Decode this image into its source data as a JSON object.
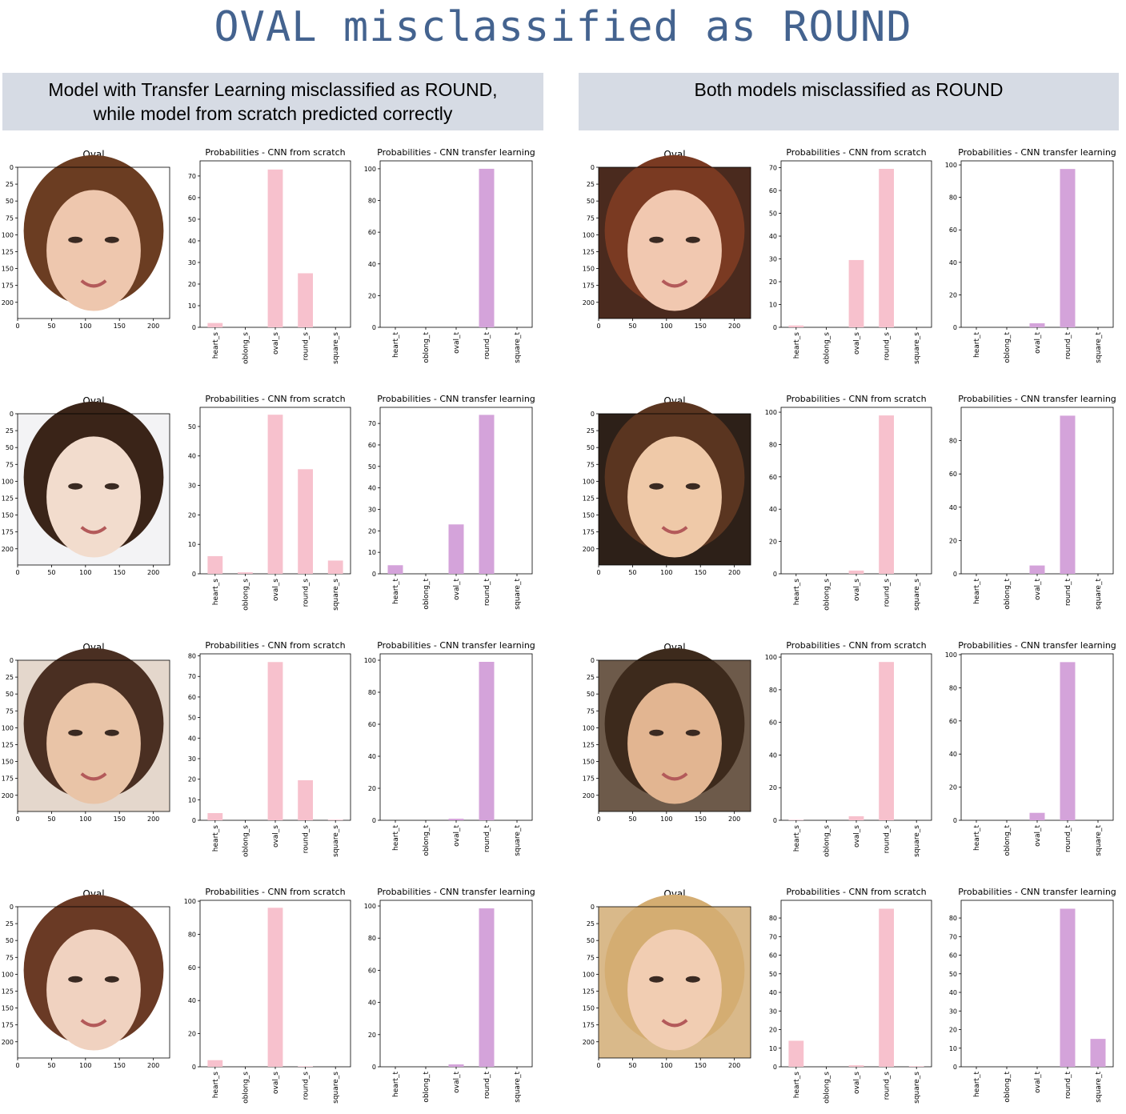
{
  "title": "OVAL misclassified as ROUND",
  "panels": {
    "left": {
      "header_line1": "Model with Transfer Learning misclassified as ROUND,",
      "header_line2": "while model from scratch predicted correctly"
    },
    "right": {
      "header_line1": "Both models misclassified as ROUND",
      "header_line2": ""
    }
  },
  "colors": {
    "title": "#44638f",
    "header_bg": "#d6dbe4",
    "scratch_bar": "#f7c1cd",
    "transfer_bar": "#d4a3da"
  },
  "chart_data": [
    {
      "panel": "left",
      "row": 0,
      "image": {
        "type": "image",
        "title": "Oval",
        "xticks": [
          0,
          50,
          100,
          150,
          200
        ],
        "yticks": [
          0,
          25,
          50,
          75,
          100,
          125,
          150,
          175,
          200
        ]
      },
      "scratch": {
        "type": "bar",
        "title": "Probabilities - CNN from scratch",
        "categories": [
          "heart_s",
          "oblong_s",
          "oval_s",
          "round_s",
          "square_s"
        ],
        "values": [
          2,
          0,
          73,
          25,
          0
        ],
        "ylim": [
          0,
          77
        ],
        "yticks": [
          0,
          10,
          20,
          30,
          40,
          50,
          60,
          70
        ]
      },
      "transfer": {
        "type": "bar",
        "title": "Probabilities - CNN transfer learning",
        "categories": [
          "heart_t",
          "oblong_t",
          "oval_t",
          "round_t",
          "square_t"
        ],
        "values": [
          0,
          0,
          0,
          100,
          0
        ],
        "ylim": [
          0,
          105
        ],
        "yticks": [
          0,
          20,
          40,
          60,
          80,
          100
        ]
      }
    },
    {
      "panel": "left",
      "row": 1,
      "image": {
        "type": "image",
        "title": "Oval",
        "xticks": [
          0,
          50,
          100,
          150,
          200
        ],
        "yticks": [
          0,
          25,
          50,
          75,
          100,
          125,
          150,
          175,
          200
        ]
      },
      "scratch": {
        "type": "bar",
        "title": "Probabilities - CNN from scratch",
        "categories": [
          "heart_s",
          "oblong_s",
          "oval_s",
          "round_s",
          "square_s"
        ],
        "values": [
          6,
          0.5,
          54,
          35.5,
          4.5
        ],
        "ylim": [
          0,
          56.5
        ],
        "yticks": [
          0,
          10,
          20,
          30,
          40,
          50
        ]
      },
      "transfer": {
        "type": "bar",
        "title": "Probabilities - CNN transfer learning",
        "categories": [
          "heart_t",
          "oblong_t",
          "oval_t",
          "round_t",
          "square_t"
        ],
        "values": [
          4,
          0,
          23,
          74,
          0
        ],
        "ylim": [
          0,
          77.5
        ],
        "yticks": [
          0,
          10,
          20,
          30,
          40,
          50,
          60,
          70
        ]
      }
    },
    {
      "panel": "left",
      "row": 2,
      "image": {
        "type": "image",
        "title": "Oval",
        "xticks": [
          0,
          50,
          100,
          150,
          200
        ],
        "yticks": [
          0,
          25,
          50,
          75,
          100,
          125,
          150,
          175,
          200
        ]
      },
      "scratch": {
        "type": "bar",
        "title": "Probabilities - CNN from scratch",
        "categories": [
          "heart_s",
          "oblong_s",
          "oval_s",
          "round_s",
          "square_s"
        ],
        "values": [
          3.5,
          0,
          77,
          19.5,
          0.3
        ],
        "ylim": [
          0,
          81
        ],
        "yticks": [
          0,
          10,
          20,
          30,
          40,
          50,
          60,
          70,
          80
        ]
      },
      "transfer": {
        "type": "bar",
        "title": "Probabilities - CNN transfer learning",
        "categories": [
          "heart_t",
          "oblong_t",
          "oval_t",
          "round_t",
          "square_t"
        ],
        "values": [
          0,
          0,
          1,
          99,
          0
        ],
        "ylim": [
          0,
          104
        ],
        "yticks": [
          0,
          20,
          40,
          60,
          80,
          100
        ]
      }
    },
    {
      "panel": "left",
      "row": 3,
      "image": {
        "type": "image",
        "title": "Oval",
        "xticks": [
          0,
          50,
          100,
          150,
          200
        ],
        "yticks": [
          0,
          25,
          50,
          75,
          100,
          125,
          150,
          175,
          200
        ]
      },
      "scratch": {
        "type": "bar",
        "title": "Probabilities - CNN from scratch",
        "categories": [
          "heart_s",
          "oblong_s",
          "oval_s",
          "round_s",
          "square_s"
        ],
        "values": [
          4,
          0,
          96,
          0.3,
          0
        ],
        "ylim": [
          0,
          100.5
        ],
        "yticks": [
          0,
          20,
          40,
          60,
          80,
          100
        ]
      },
      "transfer": {
        "type": "bar",
        "title": "Probabilities - CNN transfer learning",
        "categories": [
          "heart_t",
          "oblong_t",
          "oval_t",
          "round_t",
          "square_t"
        ],
        "values": [
          0,
          0,
          1.5,
          98.5,
          0
        ],
        "ylim": [
          0,
          103.5
        ],
        "yticks": [
          0,
          20,
          40,
          60,
          80,
          100
        ]
      }
    },
    {
      "panel": "right",
      "row": 0,
      "image": {
        "type": "image",
        "title": "Oval",
        "xticks": [
          0,
          50,
          100,
          150,
          200
        ],
        "yticks": [
          0,
          25,
          50,
          75,
          100,
          125,
          150,
          175,
          200
        ]
      },
      "scratch": {
        "type": "bar",
        "title": "Probabilities - CNN from scratch",
        "categories": [
          "heart_s",
          "oblong_s",
          "oval_s",
          "round_s",
          "square_s"
        ],
        "values": [
          0.8,
          0,
          29.5,
          69.5,
          0
        ],
        "ylim": [
          0,
          73
        ],
        "yticks": [
          0,
          10,
          20,
          30,
          40,
          50,
          60,
          70
        ]
      },
      "transfer": {
        "type": "bar",
        "title": "Probabilities - CNN transfer learning",
        "categories": [
          "heart_t",
          "oblong_t",
          "oval_t",
          "round_t",
          "square_t"
        ],
        "values": [
          0,
          0,
          2.5,
          97.5,
          0
        ],
        "ylim": [
          0,
          102.5
        ],
        "yticks": [
          0,
          20,
          40,
          60,
          80,
          100
        ]
      }
    },
    {
      "panel": "right",
      "row": 1,
      "image": {
        "type": "image",
        "title": "Oval",
        "xticks": [
          0,
          50,
          100,
          150,
          200
        ],
        "yticks": [
          0,
          25,
          50,
          75,
          100,
          125,
          150,
          175,
          200
        ]
      },
      "scratch": {
        "type": "bar",
        "title": "Probabilities - CNN from scratch",
        "categories": [
          "heart_s",
          "oblong_s",
          "oval_s",
          "round_s",
          "square_s"
        ],
        "values": [
          0,
          0,
          2,
          98,
          0
        ],
        "ylim": [
          0,
          103
        ],
        "yticks": [
          0,
          20,
          40,
          60,
          80,
          100
        ]
      },
      "transfer": {
        "type": "bar",
        "title": "Probabilities - CNN transfer learning",
        "categories": [
          "heart_t",
          "oblong_t",
          "oval_t",
          "round_t",
          "square_t"
        ],
        "values": [
          0,
          0,
          5,
          95,
          0
        ],
        "ylim": [
          0,
          100
        ],
        "yticks": [
          0,
          20,
          40,
          60,
          80
        ]
      }
    },
    {
      "panel": "right",
      "row": 2,
      "image": {
        "type": "image",
        "title": "Oval",
        "xticks": [
          0,
          50,
          100,
          150,
          200
        ],
        "yticks": [
          0,
          25,
          50,
          75,
          100,
          125,
          150,
          175,
          200
        ]
      },
      "scratch": {
        "type": "bar",
        "title": "Probabilities - CNN from scratch",
        "categories": [
          "heart_s",
          "oblong_s",
          "oval_s",
          "round_s",
          "square_s"
        ],
        "values": [
          0.3,
          0,
          2.5,
          97,
          0
        ],
        "ylim": [
          0,
          102
        ],
        "yticks": [
          0,
          20,
          40,
          60,
          80,
          100
        ]
      },
      "transfer": {
        "type": "bar",
        "title": "Probabilities - CNN transfer learning",
        "categories": [
          "heart_t",
          "oblong_t",
          "oval_t",
          "round_t",
          "square_t"
        ],
        "values": [
          0,
          0,
          4.5,
          95.5,
          0
        ],
        "ylim": [
          0,
          100.5
        ],
        "yticks": [
          0,
          20,
          40,
          60,
          80,
          100
        ]
      }
    },
    {
      "panel": "right",
      "row": 3,
      "image": {
        "type": "image",
        "title": "Oval",
        "xticks": [
          0,
          50,
          100,
          150,
          200
        ],
        "yticks": [
          0,
          25,
          50,
          75,
          100,
          125,
          150,
          175,
          200
        ]
      },
      "scratch": {
        "type": "bar",
        "title": "Probabilities - CNN from scratch",
        "categories": [
          "heart_s",
          "oblong_s",
          "oval_s",
          "round_s",
          "square_s"
        ],
        "values": [
          14,
          0,
          0.8,
          85,
          0.3
        ],
        "ylim": [
          0,
          89.5
        ],
        "yticks": [
          0,
          10,
          20,
          30,
          40,
          50,
          60,
          70,
          80
        ]
      },
      "transfer": {
        "type": "bar",
        "title": "Probabilities - CNN transfer learning",
        "categories": [
          "heart_t",
          "oblong_t",
          "oval_t",
          "round_t",
          "square_t"
        ],
        "values": [
          0,
          0,
          0,
          85,
          15
        ],
        "ylim": [
          0,
          89.5
        ],
        "yticks": [
          0,
          10,
          20,
          30,
          40,
          50,
          60,
          70,
          80
        ]
      }
    }
  ]
}
